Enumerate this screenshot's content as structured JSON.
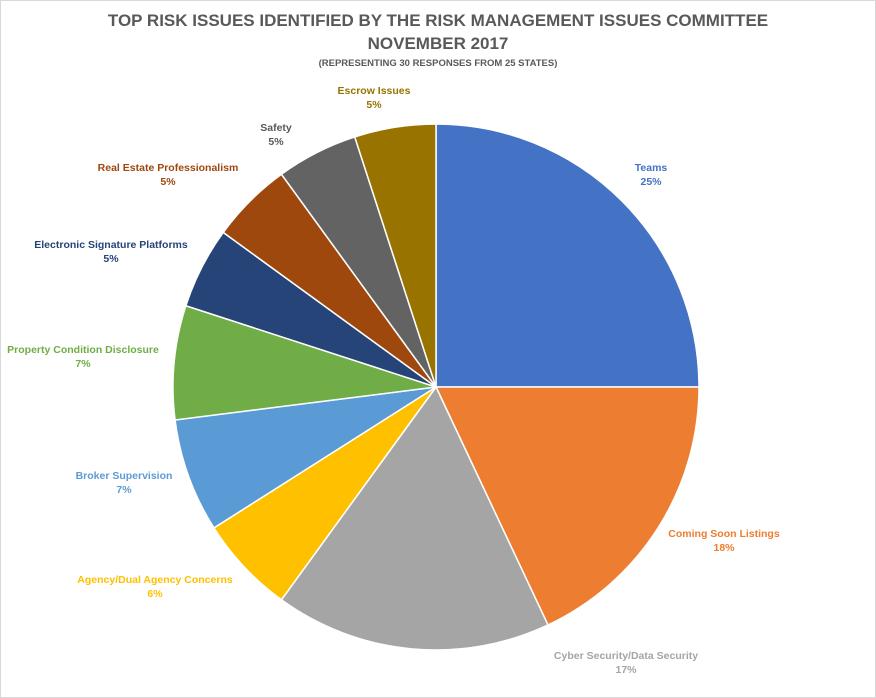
{
  "chart_data": {
    "type": "pie",
    "title_line1": "TOP RISK ISSUES IDENTIFIED BY THE RISK MANAGEMENT ISSUES COMMITTEE",
    "title_line2": "NOVEMBER 2017",
    "subtitle": "(REPRESENTING 30 RESPONSES FROM 25 STATES)",
    "slices": [
      {
        "label": "Teams",
        "value": 25,
        "value_label": "25%",
        "color": "#4472c4"
      },
      {
        "label": "Coming Soon Listings",
        "value": 18,
        "value_label": "18%",
        "color": "#ed7d31"
      },
      {
        "label": "Cyber Security/Data Security",
        "value": 17,
        "value_label": "17%",
        "color": "#a5a5a5"
      },
      {
        "label": "Agency/Dual Agency Concerns",
        "value": 6,
        "value_label": "6%",
        "color": "#ffc000"
      },
      {
        "label": "Broker Supervision",
        "value": 7,
        "value_label": "7%",
        "color": "#5b9bd5"
      },
      {
        "label": "Property Condition Disclosure",
        "value": 7,
        "value_label": "7%",
        "color": "#70ad47"
      },
      {
        "label": "Electronic Signature Platforms",
        "value": 5,
        "value_label": "5%",
        "color": "#264478"
      },
      {
        "label": "Real Estate Professionalism",
        "value": 5,
        "value_label": "5%",
        "color": "#9e480e"
      },
      {
        "label": "Safety",
        "value": 5,
        "value_label": "5%",
        "color": "#636363"
      },
      {
        "label": "Escrow Issues",
        "value": 5,
        "value_label": "5%",
        "color": "#997300"
      }
    ],
    "label_colors": {
      "Teams": "#4472c4",
      "Coming Soon Listings": "#ed7d31",
      "Cyber Security/Data Security": "#a5a5a5",
      "Agency/Dual Agency Concerns": "#ffc000",
      "Broker Supervision": "#5b9bd5",
      "Property Condition Disclosure": "#70ad47",
      "Electronic Signature Platforms": "#264478",
      "Real Estate Professionalism": "#9e480e",
      "Safety": "#595959",
      "Escrow Issues": "#997300"
    },
    "start": "12 o'clock",
    "direction": "clockwise"
  }
}
